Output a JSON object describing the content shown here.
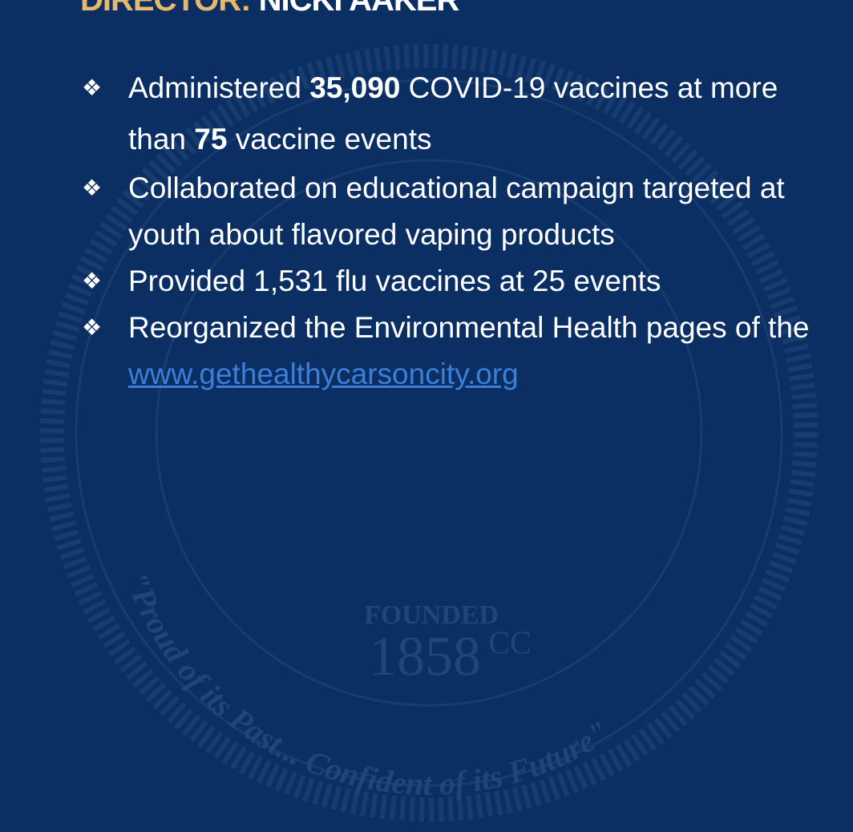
{
  "header": {
    "label": "DIRECTOR:",
    "name": "NICKI AAKER"
  },
  "bullets": [
    {
      "parts": [
        {
          "text": "Administered "
        },
        {
          "text": "35,090",
          "bold": true
        },
        {
          "text": " COVID-19 vaccines at more than "
        },
        {
          "text": "75",
          "bold": true
        },
        {
          "text": " vaccine events"
        }
      ]
    },
    {
      "parts": [
        {
          "text": "Collaborated on educational campaign targeted at youth about flavored vaping products"
        }
      ]
    },
    {
      "parts": [
        {
          "text": "Provided 1,531 flu vaccines at 25 events"
        }
      ]
    },
    {
      "parts": [
        {
          "text": "Reorganized the Environmental Health pages of the "
        },
        {
          "text": "www.gethealthycarsoncity.org",
          "link": true
        }
      ]
    }
  ],
  "seal": {
    "founded": "FOUNDED",
    "year": "1858",
    "initials": "CC",
    "motto": "\"Proud of its Past... Confident of its Future\""
  }
}
